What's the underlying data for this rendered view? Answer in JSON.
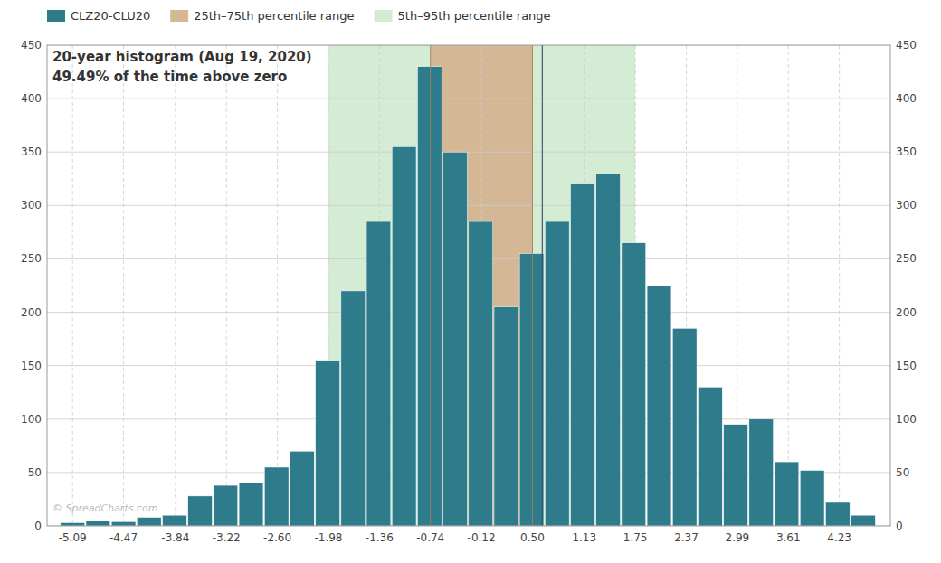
{
  "chart_data": {
    "type": "bar",
    "title": "20-year histogram (Aug 19, 2020)",
    "subtitle": "49.49% of the time above zero",
    "x": [
      -5.09,
      -4.78,
      -4.47,
      -4.16,
      -3.85,
      -3.54,
      -3.23,
      -2.92,
      -2.61,
      -2.3,
      -1.99,
      -1.68,
      -1.37,
      -1.06,
      -0.75,
      -0.44,
      -0.13,
      0.18,
      0.49,
      0.8,
      1.11,
      1.42,
      1.73,
      2.04,
      2.35,
      2.66,
      2.97,
      3.28,
      3.59,
      3.9,
      4.21,
      4.52
    ],
    "series": [
      {
        "name": "CLZ20-CLU20",
        "color": "#2e7b8c",
        "values": [
          3,
          5,
          4,
          8,
          10,
          28,
          38,
          40,
          55,
          70,
          155,
          220,
          285,
          355,
          430,
          350,
          285,
          205,
          255,
          285,
          320,
          330,
          265,
          225,
          185,
          130,
          95,
          100,
          60,
          52,
          22,
          10
        ]
      }
    ],
    "ranges": [
      {
        "name": "25th–75th percentile range",
        "from": -0.74,
        "to": 0.5,
        "color": "#d4b896"
      },
      {
        "name": "5th–95th percentile range",
        "from": -1.98,
        "to": 1.75,
        "color": "#d4ecd4"
      }
    ],
    "reference_lines": [
      {
        "x": 0.62,
        "color": "#3a5068"
      }
    ],
    "annotations": [
      "© SpreadCharts.com"
    ],
    "xlim": [
      -5.4,
      4.85
    ],
    "xticks": [
      -5.09,
      -4.47,
      -3.84,
      -3.22,
      {
        "value": -2.6,
        "label": "-2.60"
      },
      -1.98,
      -1.36,
      -0.74,
      -0.12,
      {
        "value": 0.5,
        "label": "0.50"
      },
      1.13,
      1.75,
      2.37,
      2.99,
      3.61,
      4.23
    ],
    "ylim": [
      0,
      450
    ],
    "yticks": [
      0,
      50,
      100,
      150,
      200,
      250,
      300,
      350,
      400,
      450
    ],
    "y2lim": [
      0,
      450
    ],
    "y2ticks": [
      0,
      50,
      100,
      150,
      200,
      250,
      300,
      350,
      400,
      450
    ],
    "grid": true,
    "legend": "top"
  }
}
